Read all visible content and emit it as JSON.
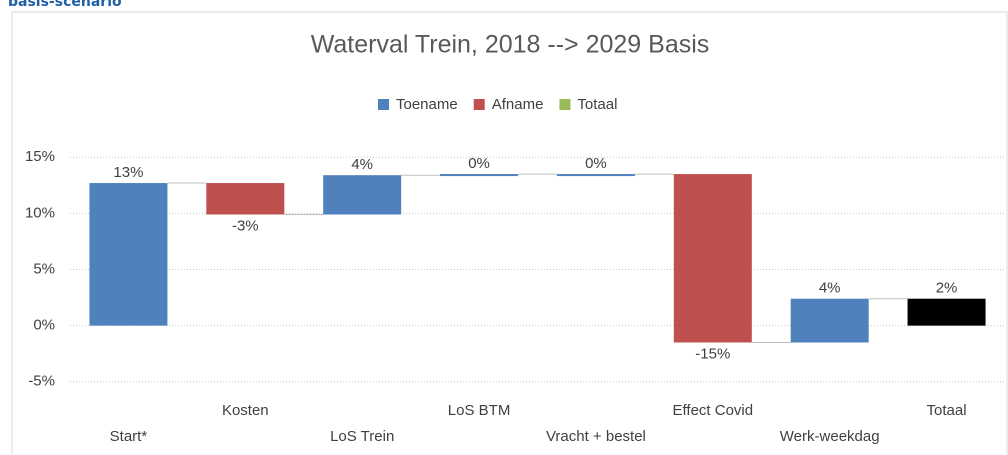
{
  "header": {
    "title": "basis-scenario"
  },
  "chart_data": {
    "type": "waterfall",
    "title": "Waterval Trein, 2018 --> 2029 Basis",
    "categories": [
      "Start*",
      "Kosten",
      "LoS Trein",
      "LoS BTM",
      "Vracht + bestel",
      "Effect Covid",
      "Werk-weekdag",
      "Totaal"
    ],
    "values": [
      12.7,
      -2.8,
      3.5,
      0.1,
      0.0,
      -15.0,
      3.9,
      2.4
    ],
    "value_labels": [
      "13%",
      "-3%",
      "4%",
      "0%",
      "0%",
      "-15%",
      "4%",
      "2%"
    ],
    "totals": [
      false,
      false,
      false,
      false,
      false,
      false,
      false,
      true
    ],
    "legend": [
      {
        "name": "Toename",
        "color": "#4f81bd"
      },
      {
        "name": "Afname",
        "color": "#c0504d"
      },
      {
        "name": "Totaal",
        "color": "#9bbb59"
      }
    ],
    "total_color": "#000000",
    "ylim": [
      -6,
      16
    ],
    "yticks": [
      {
        "value": -5,
        "label": "-5%"
      },
      {
        "value": 0,
        "label": "0%"
      },
      {
        "value": 5,
        "label": "5%"
      },
      {
        "value": 10,
        "label": "10%"
      },
      {
        "value": 15,
        "label": "15%"
      }
    ],
    "grid": true
  }
}
